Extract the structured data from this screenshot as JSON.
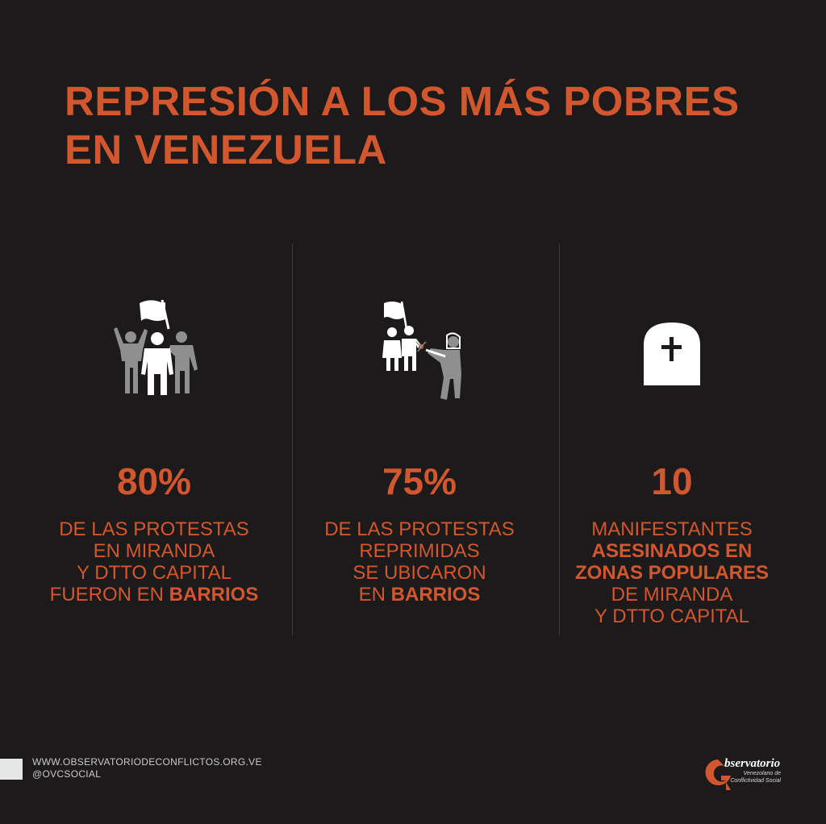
{
  "title": {
    "line1": "REPRESIÓN A LOS MÁS POBRES",
    "line2": "EN VENEZUELA"
  },
  "stats": [
    {
      "value": "80%",
      "icon": "protesters-with-flag-icon",
      "lines": [
        "DE LAS PROTESTAS",
        "EN MIRANDA",
        "Y DTTO CAPITAL"
      ],
      "last_prefix": "FUERON EN ",
      "last_bold": "BARRIOS"
    },
    {
      "value": "75%",
      "icon": "riot-police-repression-icon",
      "lines": [
        "DE LAS PROTESTAS",
        "REPRIMIDAS",
        "SE UBICARON"
      ],
      "last_prefix": "EN ",
      "last_bold": "BARRIOS"
    },
    {
      "value": "10",
      "icon": "tombstone-cross-icon",
      "line1": "MANIFESTANTES",
      "bold1": "ASESINADOS EN",
      "bold2": "ZONAS POPULARES",
      "line4": "DE MIRANDA",
      "line5": "Y DTTO CAPITAL"
    }
  ],
  "footer": {
    "website": "WWW.OBSERVATORIODECONFLICTOS.ORG.VE",
    "handle": "@OVCSOCIAL"
  },
  "logo": {
    "title": "bservatorio",
    "sub1": "Venezolano de",
    "sub2": "Conflictividad Social"
  },
  "colors": {
    "background": "#1c1a1a",
    "accent": "#d2572f",
    "icon_gray": "#8f8f8f",
    "icon_white": "#ffffff"
  }
}
